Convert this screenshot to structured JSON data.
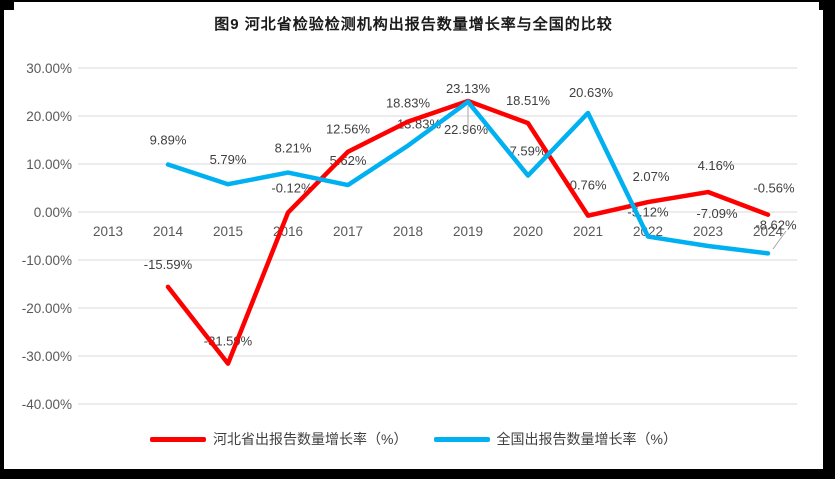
{
  "chart_data": {
    "type": "line",
    "title": "图9 河北省检验检测机构出报告数量增长率与全国的比较",
    "categories": [
      "2013",
      "2014",
      "2015",
      "2016",
      "2017",
      "2018",
      "2019",
      "2020",
      "2021",
      "2022",
      "2023",
      "2024"
    ],
    "y_ticks": [
      {
        "v": 30,
        "label": "30.00%"
      },
      {
        "v": 20,
        "label": "20.00%"
      },
      {
        "v": 10,
        "label": "10.00%"
      },
      {
        "v": 0,
        "label": "0.00%"
      },
      {
        "v": -10,
        "label": "-10.00%"
      },
      {
        "v": -20,
        "label": "-20.00%"
      },
      {
        "v": -30,
        "label": "-30.00%"
      },
      {
        "v": -40,
        "label": "-40.00%"
      }
    ],
    "ylim": [
      -40,
      30
    ],
    "grid": true,
    "legend_position": "bottom",
    "series": [
      {
        "name": "河北省出报告数量增长率（%）",
        "color": "#fe0000",
        "values": [
          null,
          -15.59,
          -31.59,
          -0.12,
          12.56,
          18.83,
          23.13,
          18.51,
          -0.76,
          2.07,
          4.16,
          -0.56
        ],
        "labels": [
          null,
          "-15.59%",
          "-31.59%",
          "-0.12%",
          "12.56%",
          "18.83%",
          "23.13%",
          "18.51%",
          "-0.76%",
          "2.07%",
          "4.16%",
          "-0.56%"
        ]
      },
      {
        "name": "全国出报告数量增长率（%）",
        "color": "#00b0f0",
        "values": [
          null,
          9.89,
          5.79,
          8.21,
          5.62,
          13.83,
          22.96,
          7.59,
          20.63,
          -5.12,
          -7.09,
          -8.62
        ],
        "labels": [
          null,
          "9.89%",
          "5.79%",
          "8.21%",
          "5.62%",
          "13.83%",
          "22.96%",
          "7.59%",
          "20.63%",
          "-5.12%",
          "-7.09%",
          "-8.62%"
        ]
      }
    ]
  }
}
